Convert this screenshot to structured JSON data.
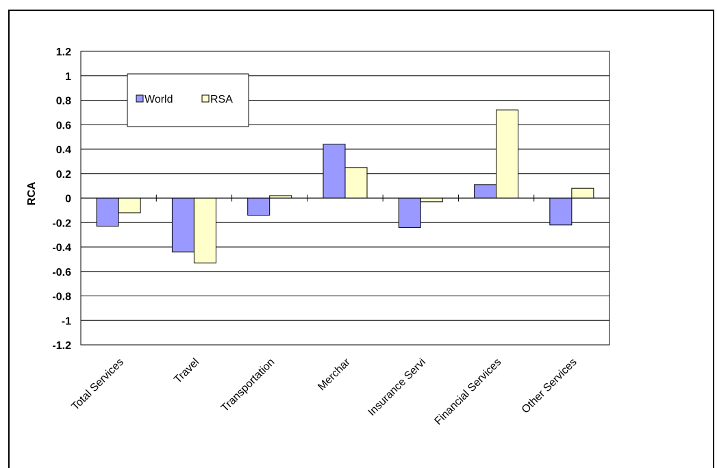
{
  "chart_data": {
    "type": "bar",
    "title": "",
    "xlabel": "",
    "ylabel": "RCA",
    "ylim": [
      -1.2,
      1.2
    ],
    "ytick_step": 0.2,
    "yticks": [
      "1.2",
      "1",
      "0.8",
      "0.6",
      "0.4",
      "0.2",
      "0",
      "-0.2",
      "-0.4",
      "-0.6",
      "-0.8",
      "-1",
      "-1.2"
    ],
    "categories": [
      "Total Services",
      "Travel",
      "Transportation",
      "Merchar",
      "Insurance Servi",
      "Financial Services",
      "Other Services"
    ],
    "series": [
      {
        "name": "World",
        "color": "#9999ff",
        "values": [
          -0.23,
          -0.44,
          -0.14,
          0.44,
          -0.24,
          0.11,
          -0.22
        ]
      },
      {
        "name": "RSA",
        "color": "#ffffcc",
        "values": [
          -0.12,
          -0.53,
          0.02,
          0.25,
          -0.03,
          0.72,
          0.08
        ]
      }
    ],
    "grid": true,
    "legend": "top-left"
  }
}
